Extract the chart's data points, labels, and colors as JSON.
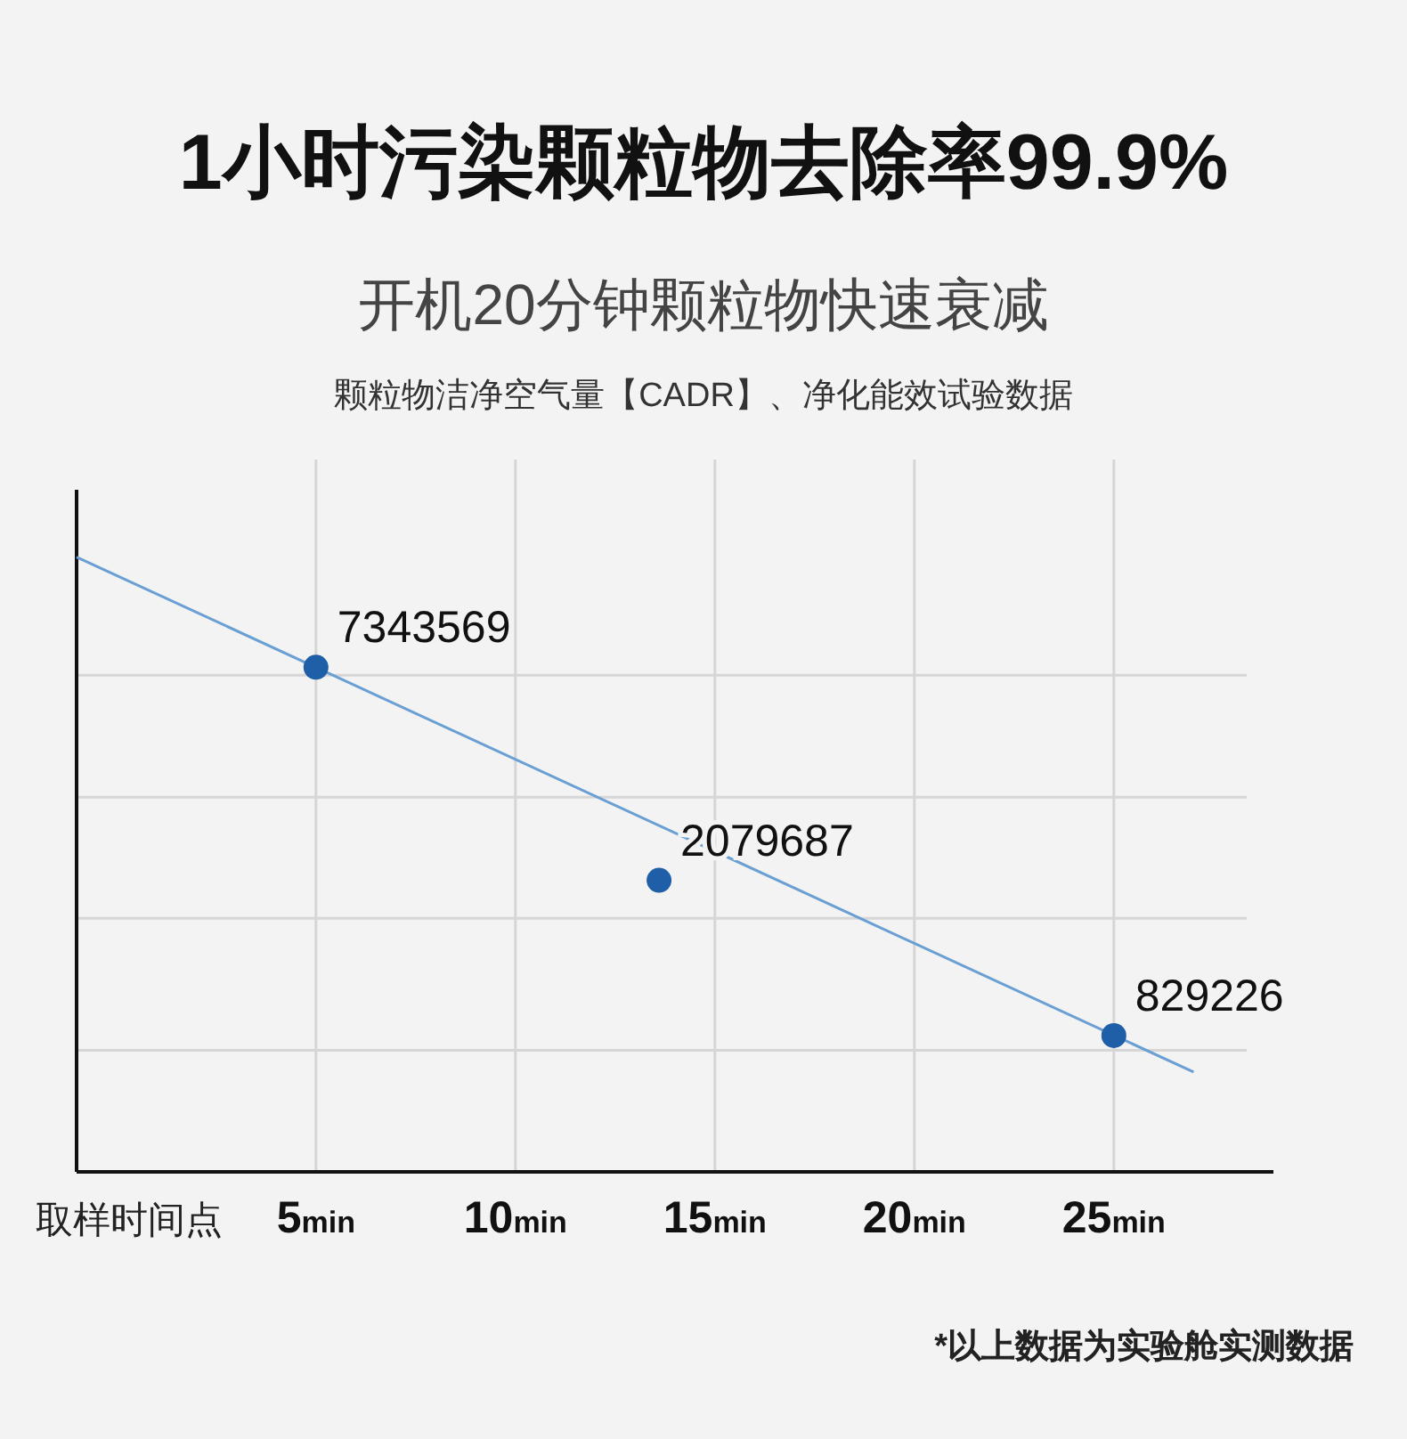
{
  "chart_data": {
    "type": "line",
    "title": "1小时污染颗粒物去除率99.9%",
    "subtitle": "开机20分钟颗粒物快速衰减",
    "annotations": [
      "颗粒物洁净空气量【CADR】、净化能效试验数据",
      "*以上数据为实验舱实测数据"
    ],
    "xlabel": "取样时间点",
    "series": [
      {
        "color": "#6a9fd4",
        "x": [
          -1,
          27
        ],
        "values": [
          14100000,
          668000
        ],
        "marker": "none"
      },
      {
        "type": "scatter",
        "color": "#1f5fa8",
        "x": [
          5,
          13.6,
          25
        ],
        "values": [
          7343569,
          2079687,
          829226
        ],
        "marker": "circle",
        "data_labels": true
      }
    ],
    "log": "y",
    "xlim": [
      -1,
      29
    ],
    "xticks": [
      {
        "value": 5,
        "label": "5min"
      },
      {
        "value": 10,
        "label": "10min"
      },
      {
        "value": 15,
        "label": "15min"
      },
      {
        "value": 20,
        "label": "20min"
      },
      {
        "value": 25,
        "label": "25min"
      }
    ],
    "ylim": [
      370000,
      21000000
    ],
    "yticks": [
      {
        "value": 760000,
        "label": null
      },
      {
        "value": 1660000,
        "label": null
      },
      {
        "value": 3400000,
        "label": null
      },
      {
        "value": 7000000,
        "label": null
      }
    ],
    "grid": true,
    "tick_labels": "x"
  }
}
